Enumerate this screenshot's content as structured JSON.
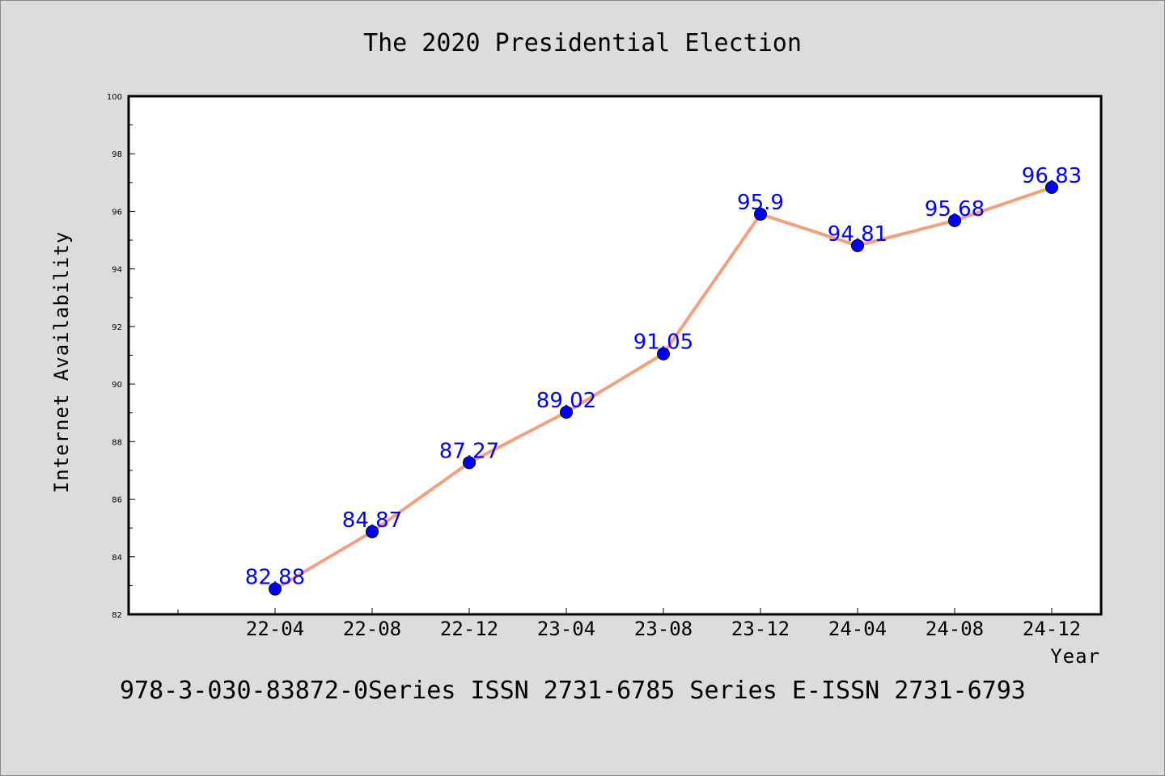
{
  "chart_data": {
    "type": "line",
    "title": "The 2020 Presidential Election",
    "xlabel": "Year",
    "ylabel": "Internet Availability",
    "categories": [
      "22-04",
      "22-08",
      "22-12",
      "23-04",
      "23-08",
      "23-12",
      "24-04",
      "24-08",
      "24-12"
    ],
    "series": [
      {
        "values": [
          82.88,
          84.87,
          87.27,
          89.02,
          91.05,
          95.9,
          94.81,
          95.68,
          96.83
        ],
        "line_color": "#f4a07c",
        "marker_color": "#0000ff"
      }
    ],
    "data_labels": [
      "82.88",
      "84.87",
      "87.27",
      "89.02",
      "91.05",
      "95.9",
      "94.81",
      "95.68",
      "96.83"
    ],
    "ylim": [
      82,
      100
    ],
    "yticks": [
      82,
      84,
      86,
      88,
      90,
      92,
      94,
      96,
      98,
      100
    ],
    "grid": false,
    "legend": "none"
  },
  "footer": "978-3-030-83872-0Series ISSN 2731-6785 Series E-ISSN 2731-6793"
}
